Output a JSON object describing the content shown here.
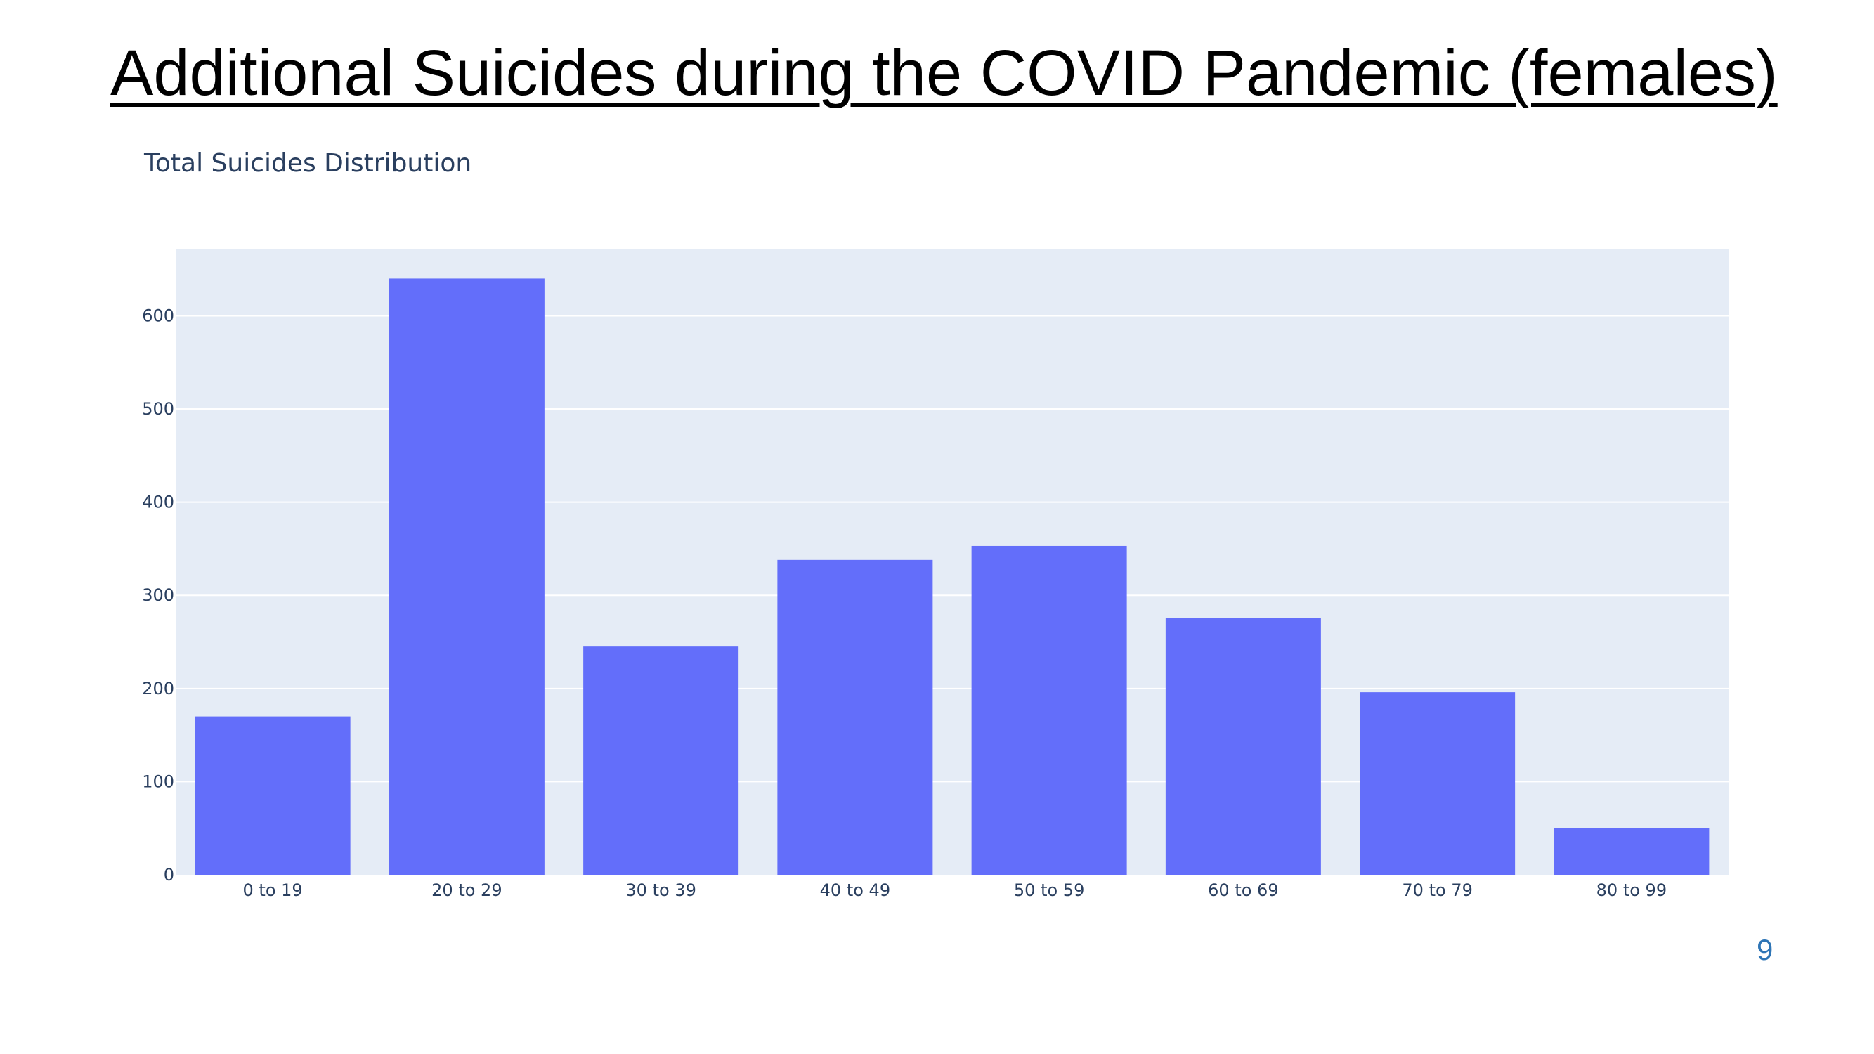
{
  "slide": {
    "title": "Additional Suicides during the COVID Pandemic (females)",
    "page_number": "9"
  },
  "colors": {
    "bar": "#636efa",
    "plot_background": "#e5ecf6",
    "grid": "#ffffff",
    "tick_text": "#2a3f5f"
  },
  "chart_data": {
    "type": "bar",
    "title": "Total Suicides Distribution",
    "xlabel": "",
    "ylabel": "",
    "categories": [
      "0 to 19",
      "20 to 29",
      "30 to 39",
      "40 to 49",
      "50 to 59",
      "60 to 69",
      "70 to 79",
      "80 to 99"
    ],
    "values": [
      170,
      640,
      245,
      338,
      353,
      276,
      196,
      50
    ],
    "ylim": [
      0,
      672
    ],
    "yticks": [
      0,
      100,
      200,
      300,
      400,
      500,
      600
    ],
    "grid": true,
    "legend": "none"
  }
}
